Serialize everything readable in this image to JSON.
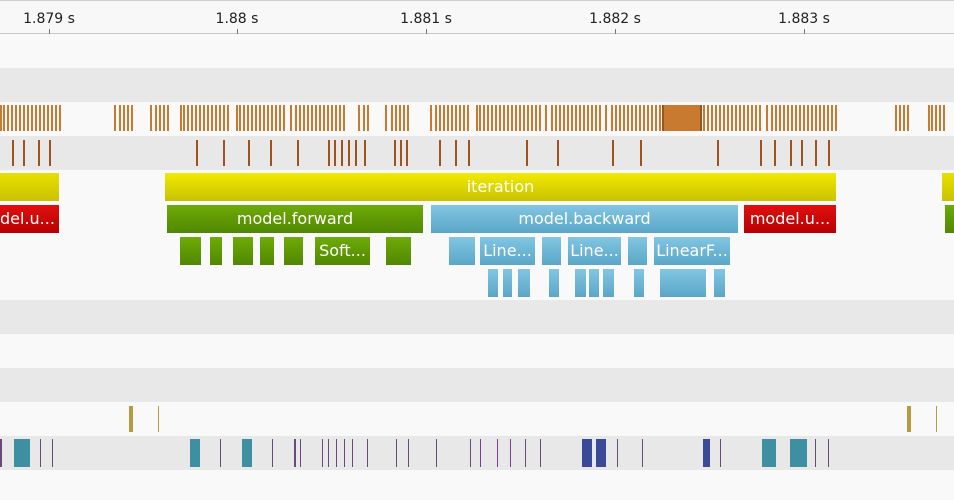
{
  "timeline": {
    "ticks": [
      "1.879 s",
      "1.88 s",
      "1.881 s",
      "1.882 s",
      "1.883 s"
    ]
  },
  "slices": {
    "iteration": "iteration",
    "model_update_left": "del.u...",
    "model_forward": "model.forward",
    "model_backward": "model.backward",
    "model_update_right": "model.u...",
    "softmax": "Soft...",
    "linear_1": "Line...",
    "linear_2": "Line...",
    "linear_f": "LinearF..."
  },
  "colors": {
    "ruler_bg": "#f8f8f8",
    "lane_light": "#f9f9f9",
    "lane_gray": "#e8e8e8",
    "activity_orange": "#c87a30",
    "activity_dark_orange": "#a0521e",
    "iteration_yellow": "#d7d000",
    "forward_green": "#5f9a00",
    "backward_blue": "#6cb6d6",
    "update_red": "#cc0000",
    "gold_marker": "#b89a40",
    "teal_block": "#3f8fa2",
    "navy_block": "#3a4a99",
    "purple_line": "#7a3aa0"
  }
}
